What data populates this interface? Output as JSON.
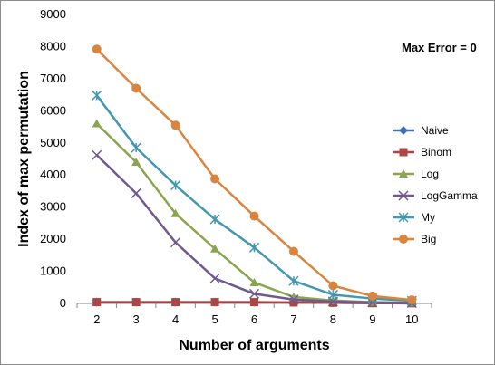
{
  "chart_data": {
    "type": "line",
    "x": [
      2,
      3,
      4,
      5,
      6,
      7,
      8,
      9,
      10
    ],
    "xlabel": "Number of arguments",
    "ylabel": "Index of max permutation",
    "ylim": [
      0,
      9000
    ],
    "yticks": [
      0,
      1000,
      2000,
      3000,
      4000,
      5000,
      6000,
      7000,
      8000,
      9000
    ],
    "grid": false,
    "legend_position": "right",
    "annotation": "Max Error = 0",
    "series": [
      {
        "name": "Naive",
        "color": "#4572a7",
        "marker": "diamond",
        "values": [
          40,
          40,
          40,
          40,
          40,
          30,
          20,
          10,
          5
        ]
      },
      {
        "name": "Binom",
        "color": "#aa4643",
        "marker": "square",
        "values": [
          40,
          40,
          40,
          40,
          40,
          30,
          20,
          10,
          5
        ]
      },
      {
        "name": "Log",
        "color": "#89a54e",
        "marker": "triangle",
        "values": [
          5600,
          4400,
          2800,
          1700,
          650,
          200,
          90,
          40,
          20
        ]
      },
      {
        "name": "LogGamma",
        "color": "#71588f",
        "marker": "x",
        "values": [
          4620,
          3430,
          1900,
          780,
          300,
          120,
          60,
          30,
          15
        ]
      },
      {
        "name": "My",
        "color": "#4198af",
        "marker": "asterisk",
        "values": [
          6480,
          4850,
          3680,
          2620,
          1740,
          700,
          270,
          150,
          80
        ]
      },
      {
        "name": "Big",
        "color": "#db843d",
        "marker": "circle",
        "values": [
          7920,
          6700,
          5550,
          3880,
          2720,
          1620,
          550,
          230,
          110
        ]
      }
    ]
  }
}
